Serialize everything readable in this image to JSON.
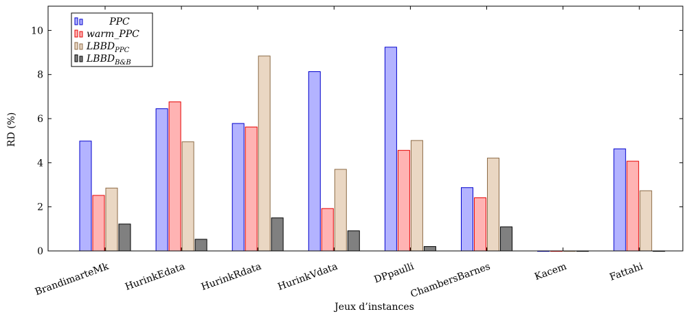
{
  "chart_data": {
    "type": "bar",
    "xlabel": "Jeux d’instances",
    "ylabel": "RD (%)",
    "ylim": [
      0,
      11.1
    ],
    "yticks": [
      0,
      2,
      4,
      6,
      8,
      10
    ],
    "grid": false,
    "legend_position": "top-left",
    "categories": [
      "BrandimarteMk",
      "HurinkEdata",
      "HurinkRdata",
      "HurinkVdata",
      "DPpaulli",
      "ChambersBarnes",
      "Kacem",
      "Fattahi"
    ],
    "series": [
      {
        "name": "PPC",
        "name_sub": "",
        "fill": "#b3b3ff",
        "stroke": "#0000cc",
        "values": [
          4.98,
          6.45,
          5.78,
          8.13,
          9.24,
          2.87,
          0.0,
          4.63
        ]
      },
      {
        "name": "warm_PPC",
        "name_sub": "",
        "fill": "#ffb3b3",
        "stroke": "#e60000",
        "values": [
          2.52,
          6.76,
          5.62,
          1.92,
          4.56,
          2.41,
          0.0,
          4.07
        ]
      },
      {
        "name": "LBBD",
        "name_sub": "PPC",
        "fill": "#ead7c3",
        "stroke": "#8c6a45",
        "values": [
          2.85,
          4.95,
          8.84,
          3.7,
          5.01,
          4.21,
          0.0,
          2.73
        ]
      },
      {
        "name": "LBBD",
        "name_sub": "B&B",
        "fill": "#808080",
        "stroke": "#000000",
        "values": [
          1.22,
          0.53,
          1.5,
          0.91,
          0.2,
          1.09,
          0.0,
          0.0
        ]
      }
    ]
  }
}
